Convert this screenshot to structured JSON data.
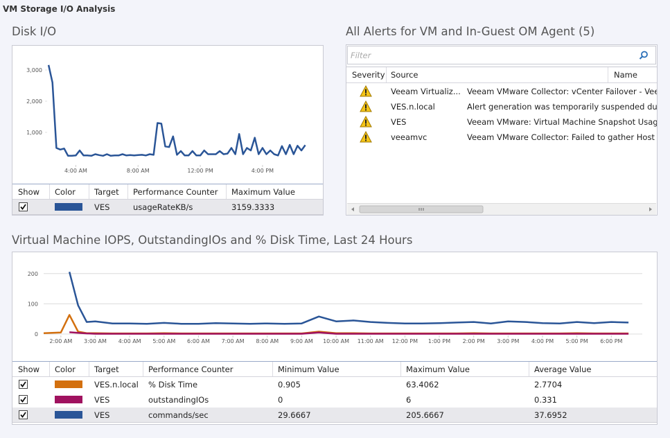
{
  "header": {
    "title": "VM Storage I/O Analysis"
  },
  "disk_io": {
    "title": "Disk I/O",
    "chart": {
      "type": "line",
      "x": [
        2.25,
        2.5,
        2.75,
        3,
        3.25,
        3.5,
        3.75,
        4,
        4.25,
        4.5,
        4.75,
        5,
        5.25,
        5.5,
        5.75,
        6,
        6.25,
        6.5,
        6.75,
        7,
        7.25,
        7.5,
        7.75,
        8,
        8.25,
        8.5,
        8.75,
        9,
        9.25,
        9.5,
        9.75,
        10,
        10.25,
        10.5,
        10.75,
        11,
        11.25,
        11.5,
        11.75,
        12,
        12.25,
        12.5,
        12.75,
        13,
        13.25,
        13.5,
        13.75,
        14,
        14.25,
        14.5,
        14.75,
        15,
        15.25,
        15.5,
        15.75,
        16,
        16.25,
        16.5,
        16.75,
        17,
        17.25,
        17.5,
        17.75,
        18,
        18.25,
        18.5,
        18.75
      ],
      "xlim": [
        2.2,
        18.9
      ],
      "xticks": [
        {
          "value": 4,
          "label": "4:00 AM"
        },
        {
          "value": 8,
          "label": "8:00 AM"
        },
        {
          "value": 12,
          "label": "12:00 PM"
        },
        {
          "value": 16,
          "label": "4:00 PM"
        }
      ],
      "ylim": [
        0,
        3400
      ],
      "yticks": [
        {
          "value": 1000,
          "label": "1,000"
        },
        {
          "value": 2000,
          "label": "2,000"
        },
        {
          "value": 3000,
          "label": "3,000"
        }
      ],
      "grid": false,
      "series": [
        {
          "color": "#2a5597",
          "values": [
            3159.3333,
            2600,
            500,
            450,
            480,
            250,
            250,
            260,
            420,
            260,
            260,
            250,
            300,
            270,
            250,
            300,
            250,
            260,
            260,
            300,
            260,
            270,
            260,
            270,
            280,
            260,
            300,
            280,
            1300,
            1280,
            550,
            530,
            870,
            280,
            400,
            260,
            260,
            400,
            260,
            260,
            420,
            300,
            300,
            300,
            400,
            300,
            320,
            500,
            300,
            950,
            300,
            500,
            420,
            830,
            300,
            500,
            300,
            420,
            300,
            260,
            560,
            300,
            600,
            300,
            570,
            420,
            590
          ]
        }
      ]
    },
    "table": {
      "columns": [
        "Show",
        "Color",
        "Target",
        "Performance Counter",
        "Maximum Value"
      ],
      "rows": [
        {
          "show": true,
          "cells": [
            "VES",
            "usageRateKB/s",
            "3159.3333"
          ]
        }
      ]
    }
  },
  "alerts": {
    "title": "All Alerts for VM and In-Guest OM Agent (5)",
    "filter_placeholder": "Filter",
    "columns": [
      "Severity",
      "Source",
      "Name"
    ],
    "rows": [
      {
        "source": "Veeam Virtualiz...",
        "name": "Veeam VMware Collector: vCenter Failover - Veeam"
      },
      {
        "source": "VES.n.local",
        "name": "Alert generation was temporarily suspended due to"
      },
      {
        "source": "VES",
        "name": "Veeam VMware: Virtual Machine Snapshot Usage An"
      },
      {
        "source": "veeamvc",
        "name": "Veeam VMware Collector: Failed to gather Host hard"
      }
    ]
  },
  "iops": {
    "title": "Virtual Machine IOPS, OutstandingIOs and % Disk Time, Last 24 Hours",
    "chart": {
      "type": "line",
      "x": [
        1.5,
        2,
        2.25,
        2.5,
        2.75,
        3,
        3.5,
        4,
        4.5,
        5,
        5.5,
        6,
        6.5,
        7,
        7.5,
        8,
        8.5,
        9,
        9.5,
        10,
        10.5,
        11,
        11.5,
        12,
        12.5,
        13,
        13.5,
        14,
        14.5,
        15,
        15.5,
        16,
        16.5,
        17,
        17.5,
        18,
        18.5
      ],
      "xlim": [
        1.5,
        18.9
      ],
      "xticks": [
        {
          "value": 2,
          "label": "2:00 AM"
        },
        {
          "value": 3,
          "label": "3:00 AM"
        },
        {
          "value": 4,
          "label": "4:00 AM"
        },
        {
          "value": 5,
          "label": "5:00 AM"
        },
        {
          "value": 6,
          "label": "6:00 AM"
        },
        {
          "value": 7,
          "label": "7:00 AM"
        },
        {
          "value": 8,
          "label": "8:00 AM"
        },
        {
          "value": 9,
          "label": "9:00 AM"
        },
        {
          "value": 10,
          "label": "10:00 AM"
        },
        {
          "value": 11,
          "label": "11:00 AM"
        },
        {
          "value": 12,
          "label": "12:00 PM"
        },
        {
          "value": 13,
          "label": "1:00 PM"
        },
        {
          "value": 14,
          "label": "2:00 PM"
        },
        {
          "value": 15,
          "label": "3:00 PM"
        },
        {
          "value": 16,
          "label": "4:00 PM"
        },
        {
          "value": 17,
          "label": "5:00 PM"
        },
        {
          "value": 18,
          "label": "6:00 PM"
        }
      ],
      "ylim": [
        0,
        250
      ],
      "yticks": [
        0,
        100,
        200
      ],
      "grid": true,
      "series": [
        {
          "color": "#d3700f",
          "values": [
            3,
            5,
            63.4062,
            8,
            3,
            3,
            2,
            2,
            2,
            3,
            2,
            2,
            2,
            2,
            2,
            2,
            2,
            2,
            8,
            3,
            3,
            2,
            2,
            2,
            2,
            2,
            2,
            3,
            2,
            2,
            2,
            2,
            2,
            3,
            2,
            2,
            2
          ]
        },
        {
          "color": "#a0125f",
          "values": [
            null,
            null,
            6,
            4,
            2,
            1,
            1,
            1,
            1,
            1,
            1,
            1,
            1,
            1,
            1,
            1,
            1,
            1,
            5,
            1,
            1,
            1,
            1,
            1,
            1,
            1,
            1,
            1,
            1,
            1,
            1,
            1,
            1,
            1,
            1,
            1,
            1
          ]
        },
        {
          "color": "#2a5597",
          "values": [
            null,
            null,
            205.6667,
            95,
            40,
            42,
            35,
            35,
            34,
            37,
            34,
            34,
            36,
            35,
            34,
            35,
            34,
            35,
            58,
            42,
            45,
            40,
            37,
            35,
            35,
            36,
            38,
            40,
            35,
            42,
            40,
            36,
            35,
            40,
            36,
            40,
            38
          ]
        }
      ]
    },
    "table": {
      "columns": [
        "Show",
        "Color",
        "Target",
        "Performance Counter",
        "Minimum Value",
        "Maximum Value",
        "Average Value"
      ],
      "rows": [
        {
          "show": true,
          "cells": [
            "VES.n.local",
            "% Disk Time",
            "0.905",
            "63.4062",
            "2.7704"
          ]
        },
        {
          "show": true,
          "cells": [
            "VES",
            "outstandingIOs",
            "0",
            "6",
            "0.331"
          ]
        },
        {
          "show": true,
          "cells": [
            "VES",
            "commands/sec",
            "29.6667",
            "205.6667",
            "37.6952"
          ]
        }
      ]
    }
  }
}
